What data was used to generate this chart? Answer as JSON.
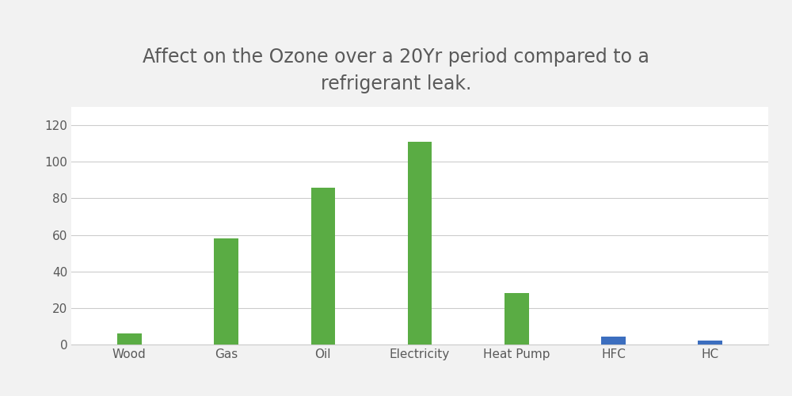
{
  "title": "Affect on the Ozone over a 20Yr period compared to a\nrefrigerant leak.",
  "categories": [
    "Wood",
    "Gas",
    "Oil",
    "Electricity",
    "Heat Pump",
    "HFC",
    "HC"
  ],
  "co2_values": [
    6,
    58,
    86,
    111,
    28,
    0,
    0
  ],
  "leak_values": [
    0,
    0,
    0,
    0,
    0,
    4.5,
    2
  ],
  "co2_color": "#5aac44",
  "leak_color": "#3c6ebf",
  "ylim": [
    0,
    130
  ],
  "yticks": [
    0,
    20,
    40,
    60,
    80,
    100,
    120
  ],
  "bar_width": 0.25,
  "background_color": "#FFFFFF",
  "outer_bg_color": "#F2F2F2",
  "grid_color": "#CCCCCC",
  "title_fontsize": 17,
  "tick_fontsize": 11,
  "legend_fontsize": 11,
  "title_color": "#595959",
  "tick_color": "#595959"
}
